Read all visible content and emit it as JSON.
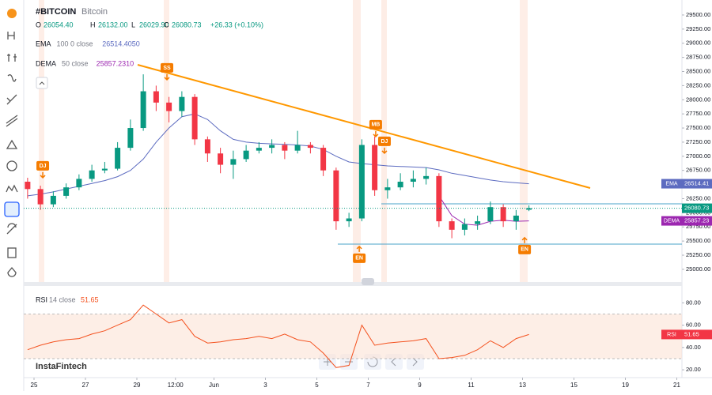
{
  "chart_data": [
    {
      "type": "candlestick",
      "title": "#BITCOIN",
      "subtitle": "Bitcoin",
      "ohlc_legend": [
        {
          "label": "O",
          "value": "26054.40"
        },
        {
          "label": "H",
          "value": "26132.00"
        },
        {
          "label": "L",
          "value": "26029.90"
        },
        {
          "label": "C",
          "value": "26080.73"
        }
      ],
      "change": "+26.33 (+0.10%)",
      "last_price_label": "26080.73",
      "up_color": "#089981",
      "down_color": "#f23645",
      "x": [
        24.75,
        25.25,
        25.75,
        26.25,
        26.75,
        27.25,
        27.75,
        28.25,
        28.75,
        29.25,
        29.75,
        30.25,
        30.75,
        31.25,
        31.75,
        32.25,
        32.75,
        33.25,
        33.75,
        34.25,
        34.75,
        35.25,
        35.75,
        36.25,
        36.75,
        37.25,
        37.75,
        38.25,
        38.75,
        39.25,
        39.75,
        40.25,
        40.75,
        41.25,
        41.75,
        42.25,
        42.75,
        43.25,
        43.75,
        44.25
      ],
      "open": [
        26550,
        26420,
        26150,
        26300,
        26450,
        26600,
        26750,
        26780,
        27150,
        27500,
        28150,
        27950,
        27800,
        28050,
        27300,
        27050,
        26850,
        26950,
        27100,
        27150,
        27200,
        27100,
        27200,
        27150,
        26750,
        25850,
        25900,
        27200,
        26400,
        26450,
        26550,
        26600,
        26650,
        25850,
        25700,
        25800,
        25850,
        26100,
        25850,
        26054.4
      ],
      "high": [
        26620,
        26480,
        26380,
        26520,
        26680,
        26850,
        26900,
        27250,
        27650,
        28450,
        28250,
        28050,
        28150,
        28100,
        27350,
        27150,
        27100,
        27200,
        27250,
        27300,
        27250,
        27450,
        27250,
        27200,
        26800,
        26000,
        27300,
        27350,
        26600,
        26700,
        26750,
        26800,
        26700,
        25900,
        25900,
        25950,
        26200,
        26150,
        26050,
        26132
      ],
      "low": [
        26250,
        26050,
        26100,
        26250,
        26400,
        26550,
        26700,
        26750,
        27100,
        27450,
        27800,
        27600,
        27700,
        27200,
        26900,
        26700,
        26600,
        26900,
        27050,
        27050,
        26950,
        27050,
        27050,
        26650,
        25700,
        25750,
        25850,
        26300,
        26250,
        26400,
        26450,
        26500,
        25750,
        25550,
        25600,
        25700,
        25800,
        25750,
        25700,
        26029.9
      ],
      "close": [
        26420,
        26150,
        26300,
        26450,
        26600,
        26750,
        26780,
        27150,
        27500,
        28150,
        27950,
        27800,
        28050,
        27300,
        27050,
        26850,
        26950,
        27100,
        27150,
        27200,
        27100,
        27200,
        27150,
        26750,
        25850,
        25900,
        27200,
        26400,
        26450,
        26550,
        26600,
        26650,
        25850,
        25700,
        25800,
        25850,
        26100,
        25850,
        25950,
        26080.73
      ],
      "series": [
        {
          "name": "EMA",
          "params": "100 0 close",
          "value_label": "26514.4050",
          "tag_label": "26514.41",
          "color": "#5c6bc0",
          "values": [
            26300,
            26330,
            26370,
            26420,
            26470,
            26520,
            26570,
            26640,
            26750,
            26950,
            27250,
            27500,
            27700,
            27750,
            27650,
            27450,
            27300,
            27250,
            27230,
            27220,
            27210,
            27200,
            27180,
            27120,
            27000,
            26900,
            26870,
            26850,
            26830,
            26820,
            26810,
            26800,
            26760,
            26700,
            26660,
            26620,
            26580,
            26550,
            26530,
            26514.41
          ]
        },
        {
          "name": "DEMA",
          "params": "50 close",
          "value_label": "25857.2310",
          "tag_label": "25857.23",
          "color": "#9c27b0",
          "values": [
            null,
            null,
            null,
            null,
            null,
            null,
            null,
            null,
            null,
            null,
            null,
            null,
            null,
            null,
            null,
            null,
            null,
            null,
            null,
            null,
            null,
            null,
            null,
            null,
            null,
            null,
            null,
            null,
            null,
            null,
            null,
            null,
            26300,
            25950,
            25800,
            25780,
            25850,
            25870,
            25850,
            25857.23
          ]
        }
      ],
      "annotations": [
        {
          "text": "SS",
          "x": 30.17,
          "y": 28564,
          "arrow": "down"
        },
        {
          "text": "MB",
          "x": 38.29,
          "y": 27558,
          "arrow": "down"
        },
        {
          "text": "DJ",
          "x": 25.34,
          "y": 26831,
          "arrow": "down"
        },
        {
          "text": "DJ",
          "x": 38.63,
          "y": 27264,
          "arrow": "down"
        },
        {
          "text": "EN",
          "x": 37.65,
          "y": 25196,
          "arrow": "up"
        },
        {
          "text": "EN",
          "x": 44.08,
          "y": 25350,
          "arrow": "up"
        }
      ],
      "xlim": [
        24.6,
        50.2
      ],
      "xticks": [
        25,
        27,
        29,
        {
          "value": 30.5,
          "label": "12:00"
        },
        {
          "value": 32,
          "label": "Jun"
        },
        {
          "value": 34,
          "label": "3"
        },
        {
          "value": 36,
          "label": "5"
        },
        {
          "value": 38,
          "label": "7"
        },
        {
          "value": 40,
          "label": "9"
        },
        {
          "value": 42,
          "label": "11"
        },
        {
          "value": 44,
          "label": "13"
        },
        {
          "value": 46,
          "label": "15"
        },
        {
          "value": 48,
          "label": "19"
        },
        {
          "value": 50,
          "label": "21"
        }
      ],
      "ylim": [
        24775,
        29765
      ],
      "yticks": [
        {
          "value": 25000,
          "label": "25000.00"
        },
        {
          "value": 25250,
          "label": "25250.00"
        },
        {
          "value": 25500,
          "label": "25500.00"
        },
        {
          "value": 25750,
          "label": "25750.00"
        },
        {
          "value": 26000,
          "label": "26000.00"
        },
        {
          "value": 26250,
          "label": "26250.00"
        },
        {
          "value": 26500,
          "label": "26500.00"
        },
        {
          "value": 26750,
          "label": "26750.00"
        },
        {
          "value": 27000,
          "label": "27000.00"
        },
        {
          "value": 27250,
          "label": "27250.00"
        },
        {
          "value": 27500,
          "label": "27500.00"
        },
        {
          "value": 27750,
          "label": "27750.00"
        },
        {
          "value": 28000,
          "label": "28000.00"
        },
        {
          "value": 28250,
          "label": "28250.00"
        },
        {
          "value": 28500,
          "label": "28500.00"
        },
        {
          "value": 28750,
          "label": "28750.00"
        },
        {
          "value": 29000,
          "label": "29000.00"
        },
        {
          "value": 29250,
          "label": "29250.00"
        },
        {
          "value": 29500,
          "label": "29500.00"
        }
      ],
      "grid": false
    },
    {
      "type": "line",
      "title": "RSI",
      "params": "14 close",
      "value_label": "51.65",
      "color": "#f4511e",
      "values": [
        38,
        42,
        45,
        47,
        48,
        52,
        55,
        60,
        65,
        78,
        70,
        62,
        65,
        50,
        44,
        45,
        47,
        48,
        50,
        48,
        52,
        47,
        45,
        35,
        22,
        24,
        60,
        42,
        44,
        45,
        46,
        48,
        30,
        31,
        33,
        38,
        46,
        40,
        48,
        51.65
      ],
      "bands": [
        30,
        70
      ],
      "ylim": [
        13,
        93
      ],
      "yticks": [
        {
          "value": 20,
          "label": "20.00"
        },
        {
          "value": 40,
          "label": "40.00"
        },
        {
          "value": 60,
          "label": "60.00"
        },
        {
          "value": 80,
          "label": "80.00"
        }
      ]
    }
  ],
  "watermark": "InstaFintech"
}
